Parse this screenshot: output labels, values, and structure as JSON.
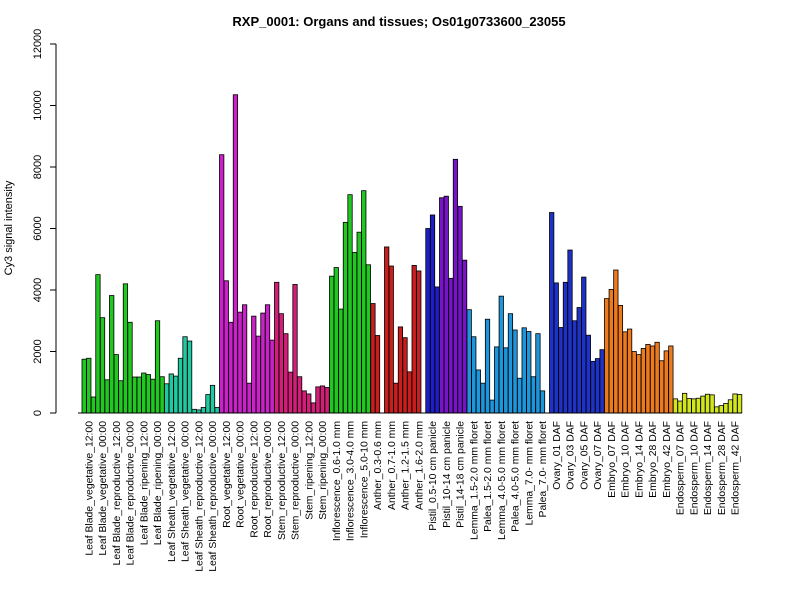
{
  "chart_data": {
    "type": "bar",
    "title": "RXP_0001: Organs and tissues; Os01g0733600_23055",
    "xlabel": "",
    "ylabel": "Cy3 signal intensity",
    "ylim": [
      0,
      12000
    ],
    "yticks": [
      0,
      2000,
      4000,
      6000,
      8000,
      10000,
      12000
    ],
    "grid": false,
    "groups": [
      {
        "label": "Leaf Blade_vegetative_12:00",
        "color": "#22c822",
        "values": [
          1750,
          1780,
          520
        ]
      },
      {
        "label": "Leaf Blade_vegetative_00:00",
        "color": "#22c822",
        "values": [
          4500,
          3100,
          1080
        ]
      },
      {
        "label": "Leaf Blade_reproductive_12:00",
        "color": "#22c822",
        "values": [
          3820,
          1900,
          1050
        ]
      },
      {
        "label": "Leaf Blade_reproductive_00:00",
        "color": "#22c822",
        "values": [
          4200,
          2950,
          1170
        ]
      },
      {
        "label": "Leaf Blade_ripening_12:00",
        "color": "#22c822",
        "values": [
          1170,
          1300,
          1250
        ]
      },
      {
        "label": "Leaf Blade_ripening_00:00",
        "color": "#22c822",
        "values": [
          1100,
          3000,
          1180
        ]
      },
      {
        "label": "Leaf Sheath_vegetative_12:00",
        "color": "#22c8a0",
        "values": [
          950,
          1270,
          1200
        ]
      },
      {
        "label": "Leaf Sheath_vegetative_00:00",
        "color": "#22c8a0",
        "values": [
          1780,
          2480,
          2340
        ]
      },
      {
        "label": "Leaf Sheath_reproductive_12:00",
        "color": "#22c8a0",
        "values": [
          120,
          100,
          180
        ]
      },
      {
        "label": "Leaf Sheath_reproductive_00:00",
        "color": "#22c8a0",
        "values": [
          600,
          900,
          180
        ]
      },
      {
        "label": "Root_vegetative_12:00",
        "color": "#c822c8",
        "values": [
          8400,
          4300,
          2950
        ]
      },
      {
        "label": "Root_vegetative_00:00",
        "color": "#c822c8",
        "values": [
          10350,
          3280,
          3520
        ]
      },
      {
        "label": "Root_reproductive_12:00",
        "color": "#c822c8",
        "values": [
          970,
          3150,
          2500
        ]
      },
      {
        "label": "Root_reproductive_00:00",
        "color": "#c822c8",
        "values": [
          3250,
          3520,
          2370
        ]
      },
      {
        "label": "Stem_reproductive_12:00",
        "color": "#d21e78",
        "values": [
          4250,
          3230,
          2580
        ]
      },
      {
        "label": "Stem_reproductive_00:00",
        "color": "#d21e78",
        "values": [
          1330,
          4180,
          1180
        ]
      },
      {
        "label": "Stem_ripening_12:00",
        "color": "#d21e78",
        "values": [
          720,
          620,
          330
        ]
      },
      {
        "label": "Stem_ripening_00:00",
        "color": "#d21e78",
        "values": [
          850,
          880,
          830
        ]
      },
      {
        "label": "Inflorescence_0.6-1.0 mm",
        "color": "#22c822",
        "values": [
          4450,
          4730,
          3380
        ]
      },
      {
        "label": "Inflorescence_3.0-4.0 mm",
        "color": "#22c822",
        "values": [
          6200,
          7100,
          5220
        ]
      },
      {
        "label": "Inflorescence_5.0-10 mm",
        "color": "#22c822",
        "values": [
          5880,
          7230,
          4820
        ]
      },
      {
        "label": "Anther_0.3-0.6 mm",
        "color": "#c81e1e",
        "values": [
          3560,
          2520
        ]
      },
      {
        "label": "Anther_0.7-1.0 mm",
        "color": "#c81e1e",
        "values": [
          5400,
          4780,
          970
        ]
      },
      {
        "label": "Anther_1.2-1.5 mm",
        "color": "#c81e1e",
        "values": [
          2800,
          2450,
          1340
        ]
      },
      {
        "label": "Anther_1.6-2.0 mm",
        "color": "#c81e1e",
        "values": [
          4800,
          4620
        ]
      },
      {
        "label": "Pistil_0.5-10 cm panicle",
        "color": "#1e1ec8",
        "values": [
          6000,
          6440,
          4100
        ]
      },
      {
        "label": "Pistil_10-14 cm panicle",
        "color": "#7814c8",
        "values": [
          7000,
          7050,
          4380
        ]
      },
      {
        "label": "Pistil_14-18 cm panicle",
        "color": "#7814c8",
        "values": [
          8250,
          6720,
          4970
        ]
      },
      {
        "label": "Lemma_1.5-2.0 mm floret",
        "color": "#1e96dc",
        "values": [
          3360,
          2480,
          1400
        ]
      },
      {
        "label": "Palea_1.5-2.0 mm floret",
        "color": "#1e96dc",
        "values": [
          970,
          3050,
          420
        ]
      },
      {
        "label": "Lemma_4.0-5.0 mm floret",
        "color": "#1e96dc",
        "values": [
          2150,
          3800,
          2120
        ]
      },
      {
        "label": "Palea_4.0-5.0 mm floret",
        "color": "#1e96dc",
        "values": [
          3230,
          2700,
          1130
        ]
      },
      {
        "label": "Lemma_7.0- mm floret",
        "color": "#1e96dc",
        "values": [
          2770,
          2650,
          1180
        ]
      },
      {
        "label": "Palea_7.0- mm floret",
        "color": "#1e96dc",
        "values": [
          2580,
          720
        ]
      },
      {
        "label": "Ovary_01 DAF",
        "color": "#1e32c8",
        "values": [
          6520,
          4230,
          2780
        ]
      },
      {
        "label": "Ovary_03 DAF",
        "color": "#1e32c8",
        "values": [
          4250,
          5300,
          3000
        ]
      },
      {
        "label": "Ovary_05 DAF",
        "color": "#1e32c8",
        "values": [
          3430,
          4420,
          2530
        ]
      },
      {
        "label": "Ovary_07 DAF",
        "color": "#1e32c8",
        "values": [
          1680,
          1770,
          2060
        ]
      },
      {
        "label": "Embryo_07 DAF",
        "color": "#ee7a1e",
        "values": [
          3720,
          4020,
          4650
        ]
      },
      {
        "label": "Embryo_10 DAF",
        "color": "#ee7a1e",
        "values": [
          3500,
          2640,
          2730
        ]
      },
      {
        "label": "Embryo_14 DAF",
        "color": "#ee7a1e",
        "values": [
          2000,
          1900,
          2100
        ]
      },
      {
        "label": "Embryo_28 DAF",
        "color": "#ee7a1e",
        "values": [
          2230,
          2180,
          2300
        ]
      },
      {
        "label": "Embryo_42 DAF",
        "color": "#ee7a1e",
        "values": [
          1700,
          2020,
          2180
        ]
      },
      {
        "label": "Endosperm_07 DAF",
        "color": "#d2e61e",
        "values": [
          460,
          390,
          640
        ]
      },
      {
        "label": "Endosperm_10 DAF",
        "color": "#d2e61e",
        "values": [
          470,
          460,
          480
        ]
      },
      {
        "label": "Endosperm_14 DAF",
        "color": "#d2e61e",
        "values": [
          550,
          610,
          590
        ]
      },
      {
        "label": "Endosperm_28 DAF",
        "color": "#d2e61e",
        "values": [
          200,
          240,
          310
        ]
      },
      {
        "label": "Endosperm_42 DAF",
        "color": "#d2e61e",
        "values": [
          430,
          620,
          600
        ]
      }
    ]
  }
}
